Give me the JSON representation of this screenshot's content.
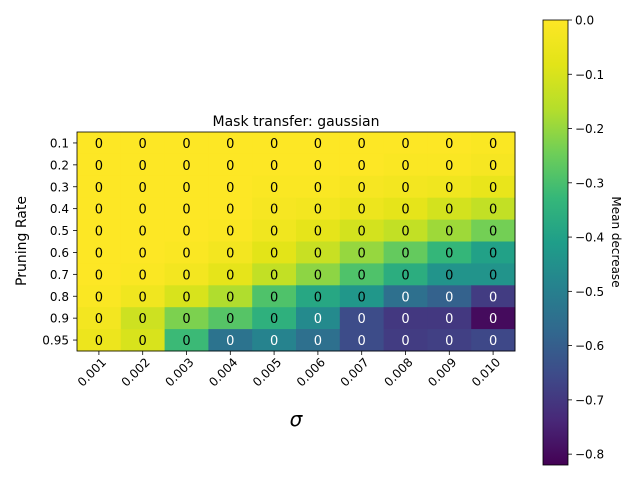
{
  "chart_data": {
    "type": "heatmap",
    "title": "Mask transfer: gaussian",
    "xlabel": "σ",
    "ylabel": "Pruning Rate",
    "colorbar_label": "Mean decrease",
    "colormap": "viridis",
    "x_categories": [
      "0.001",
      "0.002",
      "0.003",
      "0.004",
      "0.005",
      "0.006",
      "0.007",
      "0.008",
      "0.009",
      "0.010"
    ],
    "y_categories": [
      "0.1",
      "0.2",
      "0.3",
      "0.4",
      "0.5",
      "0.6",
      "0.7",
      "0.8",
      "0.9",
      "0.95"
    ],
    "values": [
      [
        0.0,
        0.0,
        0.0,
        0.0,
        0.0,
        0.0,
        0.0,
        0.0,
        0.0,
        -0.01
      ],
      [
        0.0,
        0.0,
        0.0,
        0.0,
        0.0,
        0.0,
        0.0,
        -0.01,
        -0.01,
        -0.02
      ],
      [
        0.0,
        0.0,
        0.0,
        0.0,
        -0.01,
        -0.01,
        -0.02,
        -0.03,
        -0.04,
        -0.06
      ],
      [
        0.0,
        0.0,
        0.0,
        0.0,
        -0.02,
        -0.03,
        -0.05,
        -0.07,
        -0.11,
        -0.14
      ],
      [
        0.0,
        0.0,
        0.0,
        -0.01,
        -0.04,
        -0.07,
        -0.11,
        -0.14,
        -0.19,
        -0.24
      ],
      [
        0.0,
        0.0,
        -0.01,
        -0.03,
        -0.08,
        -0.13,
        -0.2,
        -0.26,
        -0.33,
        -0.4
      ],
      [
        0.0,
        -0.01,
        -0.03,
        -0.07,
        -0.14,
        -0.21,
        -0.29,
        -0.36,
        -0.44,
        -0.44
      ],
      [
        -0.01,
        -0.04,
        -0.1,
        -0.17,
        -0.29,
        -0.38,
        -0.43,
        -0.55,
        -0.59,
        -0.69
      ],
      [
        -0.03,
        -0.12,
        -0.23,
        -0.28,
        -0.35,
        -0.47,
        -0.65,
        -0.7,
        -0.7,
        -0.8
      ],
      [
        -0.05,
        -0.1,
        -0.32,
        -0.54,
        -0.49,
        -0.55,
        -0.65,
        -0.69,
        -0.68,
        -0.66
      ]
    ],
    "cell_labels": "0",
    "vmin": -0.82,
    "vmax": 0.0,
    "colorbar_ticks": [
      "0.0",
      "−0.1",
      "−0.2",
      "−0.3",
      "−0.4",
      "−0.5",
      "−0.6",
      "−0.7",
      "−0.8"
    ],
    "colorbar_tick_values": [
      0.0,
      -0.1,
      -0.2,
      -0.3,
      -0.4,
      -0.5,
      -0.6,
      -0.7,
      -0.8
    ]
  }
}
